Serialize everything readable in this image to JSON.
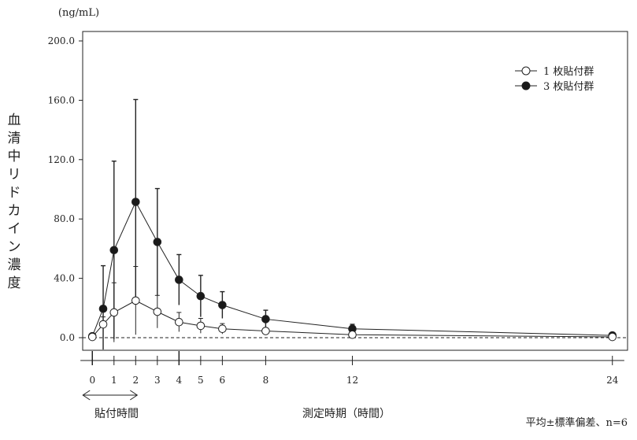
{
  "chart_data": {
    "type": "line",
    "unit": "(ng/mL)",
    "ylabel": "血清中リドカイン濃度",
    "xlabel": "測定時期（時間）",
    "application_period_label": "貼付時間",
    "footnote": "平均±標準偏差、n=6",
    "ylim": [
      0,
      200
    ],
    "yticks": [
      0,
      40,
      80,
      120,
      160,
      200
    ],
    "ytick_labels": [
      "0.0",
      "40.0",
      "80.0",
      "120.0",
      "160.0",
      "200.0"
    ],
    "xlim": [
      -0.7,
      24.7
    ],
    "xticks": [
      0,
      1,
      2,
      3,
      4,
      5,
      6,
      8,
      12,
      24
    ],
    "xtick_labels": [
      "0",
      "1",
      "2",
      "3",
      "4",
      "5",
      "6",
      "8",
      "12",
      "24"
    ],
    "application_period": [
      0,
      2
    ],
    "reference_line_y": 0,
    "grid": false,
    "legend_position": "top-right",
    "series": [
      {
        "name": "1 枚貼付群",
        "marker": "open-circle",
        "x": [
          0,
          0.5,
          1,
          2,
          3,
          4,
          5,
          6,
          8,
          12,
          24
        ],
        "y": [
          0.5,
          9,
          17,
          25,
          17.5,
          10.5,
          8,
          6,
          4.5,
          2,
          0.5
        ],
        "err": [
          0.5,
          5,
          20,
          23,
          11,
          6.5,
          5,
          3.5,
          1.5,
          1,
          0.5
        ]
      },
      {
        "name": "3 枚貼付群",
        "marker": "filled-circle",
        "x": [
          0,
          0.5,
          1,
          2,
          3,
          4,
          5,
          6,
          8,
          12,
          24
        ],
        "y": [
          1,
          19.5,
          59,
          91.5,
          64.5,
          39,
          28,
          22,
          12.5,
          6,
          1.5
        ],
        "err": [
          1,
          29,
          60,
          69,
          36,
          17,
          14,
          9,
          6,
          3,
          1
        ]
      }
    ],
    "colors": {
      "axis": "#222222",
      "open_marker_fill": "#ffffff",
      "filled_marker": "#1a1a1a"
    }
  }
}
